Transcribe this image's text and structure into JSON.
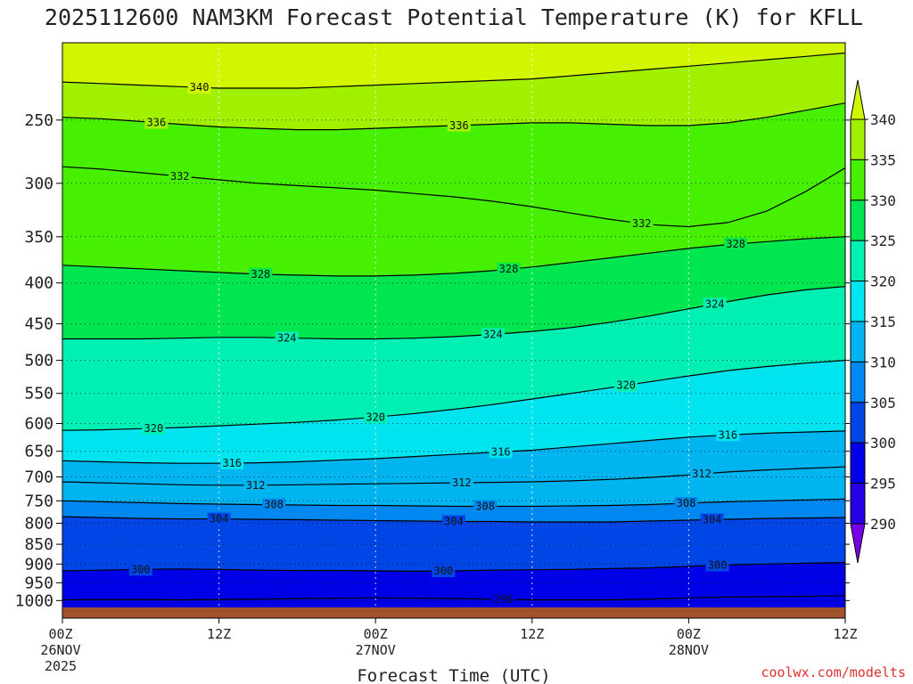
{
  "chart_data": {
    "type": "heatmap",
    "title": "2025112600 NAM3KM Forecast Potential Temperature (K) for KFLL",
    "xlabel": "Forecast Time (UTC)",
    "ylabel": "",
    "credit": "coolwx.com/modelts",
    "x_hours_range": [
      0,
      60
    ],
    "x_ticks": [
      {
        "hour": 0,
        "line1": "00Z",
        "line2": "26NOV",
        "line3": "2025"
      },
      {
        "hour": 12,
        "line1": "12Z",
        "line2": "",
        "line3": ""
      },
      {
        "hour": 24,
        "line1": "00Z",
        "line2": "27NOV",
        "line3": ""
      },
      {
        "hour": 36,
        "line1": "12Z",
        "line2": "",
        "line3": ""
      },
      {
        "hour": 48,
        "line1": "00Z",
        "line2": "28NOV",
        "line3": ""
      },
      {
        "hour": 60,
        "line1": "12Z",
        "line2": "",
        "line3": ""
      }
    ],
    "y_pressure_range_hpa": [
      1020,
      200
    ],
    "y_ticks": [
      250,
      300,
      350,
      400,
      450,
      500,
      550,
      600,
      650,
      700,
      750,
      800,
      850,
      900,
      950,
      1000
    ],
    "y_tick_labels": [
      "250",
      "300",
      "350",
      "400",
      "450",
      "500",
      "550",
      "600",
      "650",
      "700",
      "750",
      "800",
      "850",
      "900",
      "950",
      "1000"
    ],
    "surface_pressure_hpa": 1012,
    "colorbar": {
      "levels": [
        290,
        295,
        300,
        305,
        310,
        315,
        320,
        325,
        330,
        335,
        340
      ],
      "labels": [
        "290",
        "295",
        "300",
        "305",
        "310",
        "315",
        "320",
        "325",
        "330",
        "335",
        "340"
      ],
      "colors": [
        "#7800e6",
        "#2800e6",
        "#0000e6",
        "#0046e6",
        "#0087f0",
        "#00b4f0",
        "#00e4f0",
        "#00f0b4",
        "#00e650",
        "#46f000",
        "#a0f000",
        "#d2f500"
      ]
    },
    "series": [
      {
        "name": "296",
        "values": [
          998,
          997,
          997,
          998,
          997,
          996,
          994,
          993,
          992,
          993,
          994,
          996,
          998,
          998,
          998,
          996,
          992,
          990,
          989,
          988,
          986
        ]
      },
      {
        "name": "300",
        "values": [
          918,
          916,
          914,
          913,
          914,
          916,
          917,
          917,
          918,
          919,
          918,
          916,
          915,
          914,
          912,
          910,
          906,
          902,
          900,
          898,
          896
        ]
      },
      {
        "name": "304",
        "values": [
          785,
          787,
          789,
          790,
          790,
          791,
          792,
          793,
          794,
          795,
          796,
          796,
          797,
          797,
          797,
          795,
          793,
          791,
          789,
          788,
          787
        ]
      },
      {
        "name": "308",
        "values": [
          750,
          752,
          754,
          756,
          757,
          758,
          759,
          760,
          760,
          761,
          762,
          762,
          762,
          761,
          760,
          758,
          755,
          752,
          750,
          748,
          746
        ]
      },
      {
        "name": "312",
        "values": [
          710,
          712,
          714,
          716,
          717,
          717,
          716,
          715,
          714,
          713,
          712,
          711,
          710,
          708,
          705,
          701,
          696,
          690,
          686,
          683,
          680
        ]
      },
      {
        "name": "316",
        "values": [
          668,
          670,
          672,
          673,
          673,
          672,
          670,
          667,
          664,
          660,
          656,
          652,
          648,
          642,
          636,
          630,
          624,
          620,
          617,
          615,
          613
        ]
      },
      {
        "name": "320",
        "values": [
          612,
          611,
          609,
          607,
          604,
          601,
          598,
          594,
          589,
          583,
          576,
          568,
          559,
          550,
          541,
          532,
          523,
          515,
          509,
          504,
          500
        ]
      },
      {
        "name": "324",
        "values": [
          470,
          470,
          470,
          469,
          468,
          468,
          469,
          470,
          470,
          469,
          467,
          464,
          460,
          455,
          448,
          440,
          431,
          422,
          414,
          408,
          404
        ]
      },
      {
        "name": "328",
        "values": [
          380,
          382,
          384,
          386,
          388,
          390,
          391,
          392,
          392,
          391,
          389,
          386,
          382,
          377,
          372,
          367,
          362,
          358,
          355,
          352,
          350
        ]
      },
      {
        "name": "332",
        "values": [
          286,
          288,
          291,
          294,
          297,
          300,
          302,
          304,
          306,
          309,
          312,
          316,
          321,
          327,
          333,
          338,
          340,
          336,
          325,
          307,
          287
        ]
      },
      {
        "name": "336",
        "values": [
          248,
          249,
          251,
          253,
          255,
          256,
          257,
          257,
          256,
          255,
          254,
          253,
          252,
          252,
          253,
          254,
          254,
          252,
          248,
          243,
          238
        ]
      },
      {
        "name": "340",
        "values": [
          224,
          225,
          226,
          227,
          228,
          228,
          228,
          227,
          226,
          225,
          224,
          223,
          222,
          220,
          218,
          216,
          214,
          212,
          210,
          208,
          206
        ]
      }
    ],
    "contour_labels": [
      {
        "text": "340",
        "hour": 10.5
      },
      {
        "text": "336",
        "hour": 7.2
      },
      {
        "text": "336",
        "hour": 30.4
      },
      {
        "text": "332",
        "hour": 9.0
      },
      {
        "text": "332",
        "hour": 44.4
      },
      {
        "text": "328",
        "hour": 15.2
      },
      {
        "text": "328",
        "hour": 34.2
      },
      {
        "text": "328",
        "hour": 51.6
      },
      {
        "text": "324",
        "hour": 17.2
      },
      {
        "text": "324",
        "hour": 33.0
      },
      {
        "text": "324",
        "hour": 50.0
      },
      {
        "text": "320",
        "hour": 7.0
      },
      {
        "text": "320",
        "hour": 24.0
      },
      {
        "text": "320",
        "hour": 43.2
      },
      {
        "text": "316",
        "hour": 13.0
      },
      {
        "text": "316",
        "hour": 33.6
      },
      {
        "text": "316",
        "hour": 51.0
      },
      {
        "text": "312",
        "hour": 14.8
      },
      {
        "text": "312",
        "hour": 30.6
      },
      {
        "text": "312",
        "hour": 49.0
      },
      {
        "text": "308",
        "hour": 16.2
      },
      {
        "text": "308",
        "hour": 32.4
      },
      {
        "text": "308",
        "hour": 47.8
      },
      {
        "text": "304",
        "hour": 12.0
      },
      {
        "text": "304",
        "hour": 30.0
      },
      {
        "text": "304",
        "hour": 49.8
      },
      {
        "text": "300",
        "hour": 6.0
      },
      {
        "text": "300",
        "hour": 29.2
      },
      {
        "text": "300",
        "hour": 50.2
      },
      {
        "text": "296",
        "hour": 33.8
      }
    ]
  }
}
